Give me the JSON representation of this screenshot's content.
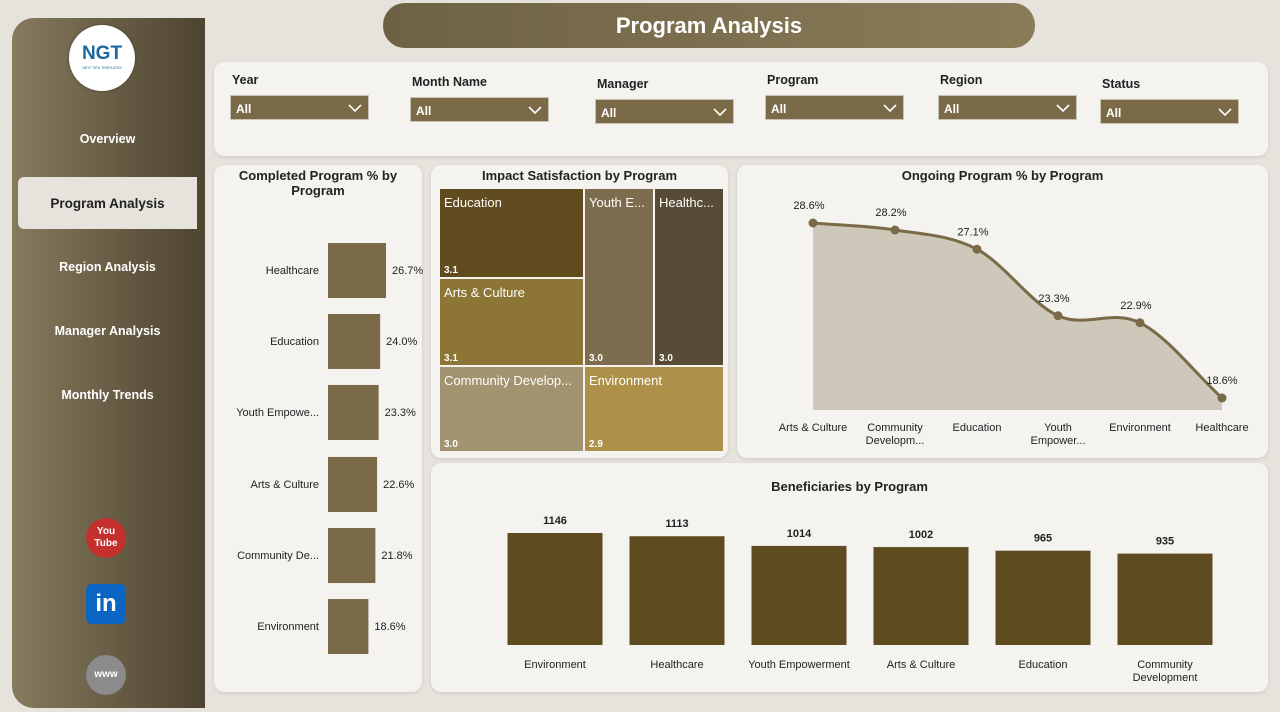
{
  "header": {
    "title": "Program Analysis"
  },
  "sidebar": {
    "logo": "NGT",
    "logo_subtitle": "NEXT GEN TEMPLATES",
    "nav": [
      {
        "label": "Overview"
      },
      {
        "label": "Program Analysis",
        "active": true
      },
      {
        "label": "Region Analysis"
      },
      {
        "label": "Manager Analysis"
      },
      {
        "label": "Monthly Trends"
      }
    ],
    "icons": [
      [
        "You",
        "Tube"
      ],
      [
        "in"
      ],
      [
        "www"
      ]
    ]
  },
  "filters": [
    {
      "label": "Year",
      "value": "All"
    },
    {
      "label": "Month Name",
      "value": "All"
    },
    {
      "label": "Manager",
      "value": "All"
    },
    {
      "label": "Program",
      "value": "All"
    },
    {
      "label": "Region",
      "value": "All"
    },
    {
      "label": "Status",
      "value": "All"
    }
  ],
  "chart_data": [
    {
      "type": "hbar",
      "title": "Completed Program % by Program",
      "color": "#7a6a48",
      "categories": [
        "Healthcare",
        "Education",
        "Youth Empowe...",
        "Arts & Culture",
        "Community De...",
        "Environment"
      ],
      "values": [
        26.7,
        24.0,
        23.3,
        22.6,
        21.8,
        18.6
      ],
      "value_labels": [
        "26.7%",
        "24.0%",
        "23.3%",
        "22.6%",
        "21.8%",
        "18.6%"
      ]
    },
    {
      "type": "treemap",
      "title": "Impact Satisfaction by Program",
      "categories": [
        "Education",
        "Youth E...",
        "Healthc...",
        "Arts & Culture",
        "Community Develop...",
        "Environment"
      ],
      "values": [
        3.1,
        3.0,
        3.0,
        3.1,
        3.0,
        2.9
      ],
      "value_labels": [
        "3.1",
        "3.0",
        "3.0",
        "3.1",
        "3.0",
        "2.9"
      ],
      "colors": [
        "#614c20",
        "#7d6d4e",
        "#574c36",
        "#8c7535",
        "#a29470",
        "#ae9148"
      ]
    },
    {
      "type": "area",
      "title": "Ongoing Program % by Program",
      "color": "#7a6a48",
      "fill": "#cdc8ba",
      "categories": [
        "Arts & Culture",
        "Community Developm...",
        "Education",
        "Youth Empower...",
        "Environment",
        "Healthcare"
      ],
      "values": [
        28.6,
        28.2,
        27.1,
        23.3,
        22.9,
        18.6
      ],
      "value_labels": [
        "28.6%",
        "28.2%",
        "27.1%",
        "23.3%",
        "22.9%",
        "18.6%"
      ]
    },
    {
      "type": "bar",
      "title": "Beneficiaries by Program",
      "color": "#5e4b1f",
      "categories": [
        "Environment",
        "Healthcare",
        "Youth Empowerment",
        "Arts & Culture",
        "Education",
        "Community Development"
      ],
      "values": [
        1146,
        1113,
        1014,
        1002,
        965,
        935
      ]
    }
  ]
}
